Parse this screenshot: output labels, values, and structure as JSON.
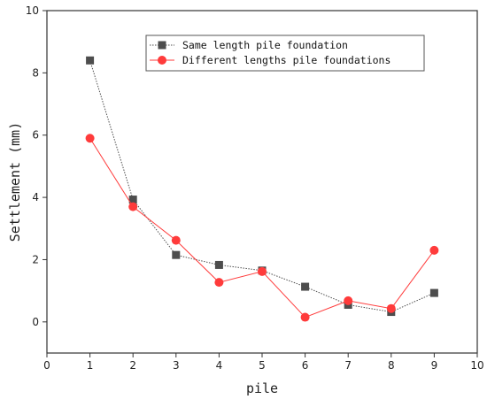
{
  "chart_data": {
    "type": "line",
    "xlabel": "pile",
    "ylabel": "Settlement (mm)",
    "xlim": [
      0,
      10
    ],
    "ylim": [
      -1,
      10
    ],
    "xticks": [
      0,
      1,
      2,
      3,
      4,
      5,
      6,
      7,
      8,
      9,
      10
    ],
    "yticks": [
      0,
      2,
      4,
      6,
      8,
      10
    ],
    "grid": false,
    "legend_position": "top-right",
    "x": [
      1,
      2,
      3,
      4,
      5,
      6,
      7,
      8,
      9
    ],
    "series": [
      {
        "name": "Same length pile foundation",
        "marker": "square",
        "color": "#4d4d4d",
        "line_style": "dotted",
        "values": [
          8.4,
          3.93,
          2.15,
          1.83,
          1.65,
          1.13,
          0.55,
          0.32,
          0.93
        ]
      },
      {
        "name": "Different lengths pile foundations",
        "marker": "circle",
        "color": "#ff3b3b",
        "line_style": "solid",
        "values": [
          5.9,
          3.7,
          2.62,
          1.27,
          1.62,
          0.15,
          0.68,
          0.43,
          2.3
        ]
      }
    ]
  }
}
